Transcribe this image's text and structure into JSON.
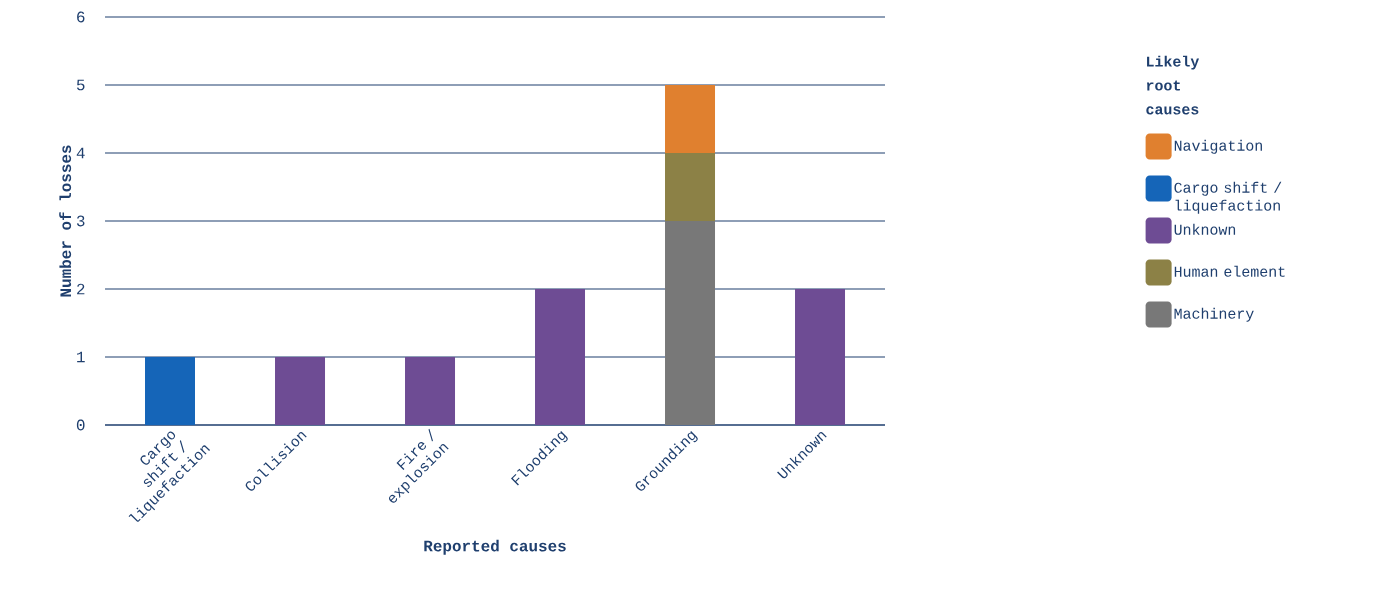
{
  "chart_data": {
    "type": "bar",
    "stacked": true,
    "xlabel": "Reported causes",
    "ylabel": "Number of losses",
    "legend_title": "Likely root causes",
    "categories": [
      "Cargo shift / liquefaction",
      "Collision",
      "Fire / explosion",
      "Flooding",
      "Grounding",
      "Unknown"
    ],
    "series": [
      {
        "name": "Machinery",
        "color": "#787878",
        "values": [
          0,
          0,
          0,
          0,
          3,
          0
        ]
      },
      {
        "name": "Human element",
        "color": "#8c8146",
        "values": [
          0,
          0,
          0,
          0,
          1,
          0
        ]
      },
      {
        "name": "Unknown",
        "color": "#6e4c94",
        "values": [
          0,
          1,
          1,
          2,
          0,
          2
        ]
      },
      {
        "name": "Cargo shift / liquefaction",
        "color": "#1565b8",
        "values": [
          1,
          0,
          0,
          0,
          0,
          0
        ]
      },
      {
        "name": "Navigation",
        "color": "#e0802f",
        "values": [
          0,
          0,
          0,
          0,
          1,
          0
        ]
      }
    ],
    "ylim": [
      0,
      6
    ],
    "yticks": [
      0,
      1,
      2,
      3,
      4,
      5,
      6
    ],
    "grid": "y",
    "legend": "right"
  }
}
